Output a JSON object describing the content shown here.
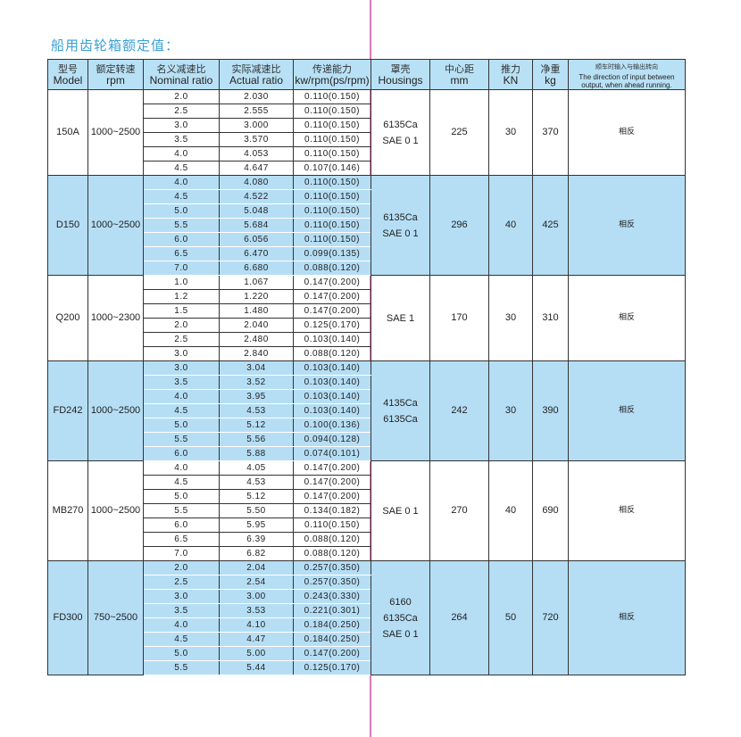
{
  "title": "船用齿轮箱额定值：",
  "colors": {
    "title": "#3a9fd6",
    "header_bg": "#b9e1f6",
    "band_bg": "#b5def5",
    "fold_line": "#e07ab8"
  },
  "headers": [
    {
      "cn": "型号",
      "en": "Model"
    },
    {
      "cn": "额定转速",
      "en": "rpm"
    },
    {
      "cn": "名义减速比",
      "en": "Nominal ratio"
    },
    {
      "cn": "实际减速比",
      "en": "Actual ratio"
    },
    {
      "cn": "传递能力",
      "en": "kw/rpm(ps/rpm)"
    },
    {
      "cn": "罩壳",
      "en": "Housings"
    },
    {
      "cn": "中心距",
      "en": "mm"
    },
    {
      "cn": "推力",
      "en": "KN"
    },
    {
      "cn": "净重",
      "en": "kg"
    },
    {
      "cn": "顺车时输入与输出转向",
      "en": "The direction of input between output, when ahead running."
    }
  ],
  "models": [
    {
      "model": "150A",
      "rpm": "1000~2500",
      "housings": [
        "6135Ca",
        "SAE 0 1"
      ],
      "center": "225",
      "thrust": "30",
      "weight": "370",
      "direction": "相反",
      "blue": false,
      "rows": [
        [
          "2.0",
          "2.030",
          "0.110(0.150)"
        ],
        [
          "2.5",
          "2.555",
          "0.110(0.150)"
        ],
        [
          "3.0",
          "3.000",
          "0.110(0.150)"
        ],
        [
          "3.5",
          "3.570",
          "0.110(0.150)"
        ],
        [
          "4.0",
          "4.053",
          "0.110(0.150)"
        ],
        [
          "4.5",
          "4.647",
          "0.107(0.146)"
        ]
      ]
    },
    {
      "model": "D150",
      "rpm": "1000~2500",
      "housings": [
        "6135Ca",
        "SAE 0 1"
      ],
      "center": "296",
      "thrust": "40",
      "weight": "425",
      "direction": "相反",
      "blue": true,
      "rows": [
        [
          "4.0",
          "4.080",
          "0.110(0.150)"
        ],
        [
          "4.5",
          "4.522",
          "0.110(0.150)"
        ],
        [
          "5.0",
          "5.048",
          "0.110(0.150)"
        ],
        [
          "5.5",
          "5.684",
          "0.110(0.150)"
        ],
        [
          "6.0",
          "6.056",
          "0.110(0.150)"
        ],
        [
          "6.5",
          "6.470",
          "0.099(0.135)"
        ],
        [
          "7.0",
          "6.680",
          "0.088(0.120)"
        ]
      ]
    },
    {
      "model": "Q200",
      "rpm": "1000~2300",
      "housings": [
        "SAE 1"
      ],
      "center": "170",
      "thrust": "30",
      "weight": "310",
      "direction": "相反",
      "blue": false,
      "rows": [
        [
          "1.0",
          "1.067",
          "0.147(0.200)"
        ],
        [
          "1.2",
          "1.220",
          "0.147(0.200)"
        ],
        [
          "1.5",
          "1.480",
          "0.147(0.200)"
        ],
        [
          "2.0",
          "2.040",
          "0.125(0.170)"
        ],
        [
          "2.5",
          "2.480",
          "0.103(0.140)"
        ],
        [
          "3.0",
          "2.840",
          "0.088(0.120)"
        ]
      ]
    },
    {
      "model": "FD242",
      "rpm": "1000~2500",
      "housings": [
        "4135Ca",
        "6135Ca"
      ],
      "center": "242",
      "thrust": "30",
      "weight": "390",
      "direction": "相反",
      "blue": true,
      "rows": [
        [
          "3.0",
          "3.04",
          "0.103(0.140)"
        ],
        [
          "3.5",
          "3.52",
          "0.103(0.140)"
        ],
        [
          "4.0",
          "3.95",
          "0.103(0.140)"
        ],
        [
          "4.5",
          "4.53",
          "0.103(0.140)"
        ],
        [
          "5.0",
          "5.12",
          "0.100(0.136)"
        ],
        [
          "5.5",
          "5.56",
          "0.094(0.128)"
        ],
        [
          "6.0",
          "5.88",
          "0.074(0.101)"
        ]
      ]
    },
    {
      "model": "MB270",
      "rpm": "1000~2500",
      "housings": [
        "SAE 0 1"
      ],
      "center": "270",
      "thrust": "40",
      "weight": "690",
      "direction": "相反",
      "blue": false,
      "rows": [
        [
          "4.0",
          "4.05",
          "0.147(0.200)"
        ],
        [
          "4.5",
          "4.53",
          "0.147(0.200)"
        ],
        [
          "5.0",
          "5.12",
          "0.147(0.200)"
        ],
        [
          "5.5",
          "5.50",
          "0.134(0.182)"
        ],
        [
          "6.0",
          "5.95",
          "0.110(0.150)"
        ],
        [
          "6.5",
          "6.39",
          "0.088(0.120)"
        ],
        [
          "7.0",
          "6.82",
          "0.088(0.120)"
        ]
      ]
    },
    {
      "model": "FD300",
      "rpm": "750~2500",
      "housings": [
        "6160",
        "6135Ca",
        "SAE 0 1"
      ],
      "center": "264",
      "thrust": "50",
      "weight": "720",
      "direction": "相反",
      "blue": true,
      "rows": [
        [
          "2.0",
          "2.04",
          "0.257(0.350)"
        ],
        [
          "2.5",
          "2.54",
          "0.257(0.350)"
        ],
        [
          "3.0",
          "3.00",
          "0.243(0.330)"
        ],
        [
          "3.5",
          "3.53",
          "0.221(0.301)"
        ],
        [
          "4.0",
          "4.10",
          "0.184(0.250)"
        ],
        [
          "4.5",
          "4.47",
          "0.184(0.250)"
        ],
        [
          "5.0",
          "5.00",
          "0.147(0.200)"
        ],
        [
          "5.5",
          "5.44",
          "0.125(0.170)"
        ]
      ]
    }
  ]
}
